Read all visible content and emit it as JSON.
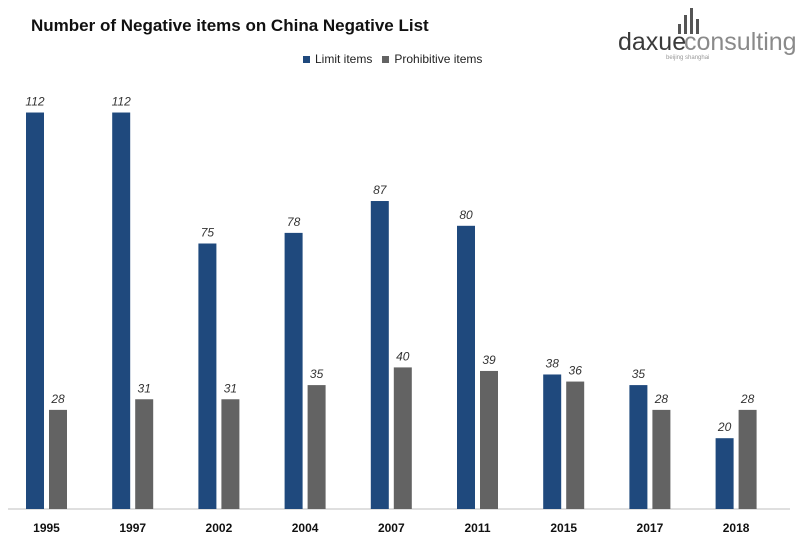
{
  "chart_data": {
    "type": "bar",
    "title": "Number of Negative items on China Negative List",
    "xlabel": "",
    "ylabel": "",
    "categories": [
      "1995",
      "1997",
      "2002",
      "2004",
      "2007",
      "2011",
      "2015",
      "2017",
      "2018"
    ],
    "series": [
      {
        "name": "Limit items",
        "color": "#1f497d",
        "values": [
          112,
          112,
          75,
          78,
          87,
          80,
          38,
          35,
          20
        ]
      },
      {
        "name": "Prohibitive items",
        "color": "#636363",
        "values": [
          28,
          31,
          31,
          35,
          40,
          39,
          36,
          28,
          28
        ]
      }
    ],
    "ylim": [
      0,
      112
    ],
    "grid": false,
    "legend_position": "top-center",
    "data_labels": true
  },
  "logo": {
    "brand_left": "daxue",
    "brand_right": "consulting",
    "tagline": "beijing shanghai",
    "colors": {
      "dark": "#3a3a3a",
      "light": "#888888"
    }
  }
}
